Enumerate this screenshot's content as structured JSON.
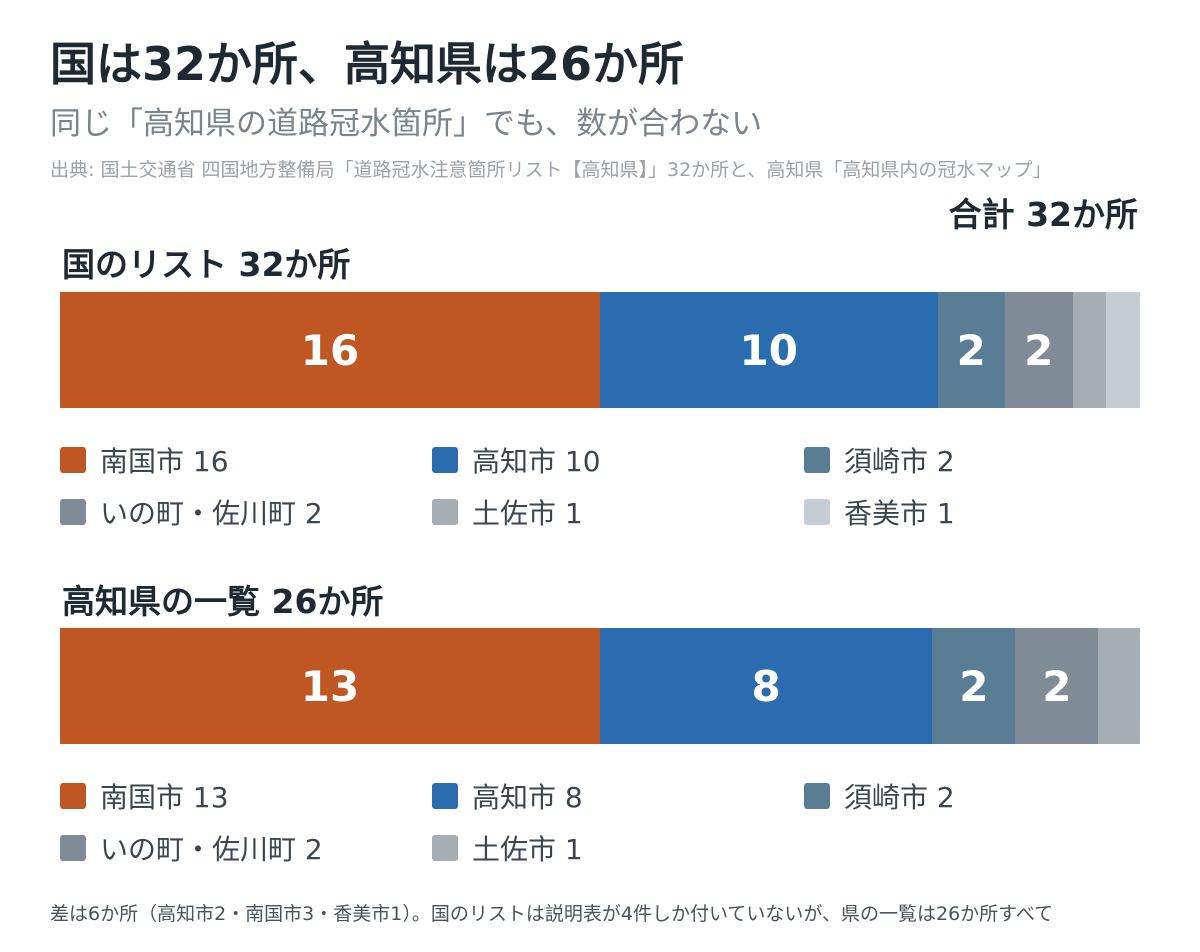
{
  "header": {
    "title": "国は32か所、高知県は26か所",
    "subtitle": "同じ「高知県の道路冠水箇所」でも、数が合わない",
    "source": "出典: 国土交通省 四国地方整備局「道路冠水注意箇所リスト【高知県】」32か所と、高知県「高知県内の冠水マップ」",
    "total": "合計 32か所"
  },
  "footer": {
    "note": "差は6か所（高知市2・南国市3・香美市1）。国のリストは説明表が4件しか付いていないが、県の一覧は26か所すべて"
  },
  "colors": {
    "南国市": "#c05621",
    "高知市": "#2b6cb0",
    "須崎市": "#5a7d96",
    "いの町・佐川町": "#7f8b97",
    "土佐市": "#a6adb5",
    "香美市": "#c5ccd4"
  },
  "chart_data": [
    {
      "type": "bar",
      "orientation": "horizontal-stacked",
      "title": "国のリスト 32か所",
      "total": 32,
      "series": [
        {
          "name": "南国市",
          "value": 16,
          "label": "16",
          "legend": "南国市 16"
        },
        {
          "name": "高知市",
          "value": 10,
          "label": "10",
          "legend": "高知市 10"
        },
        {
          "name": "須崎市",
          "value": 2,
          "label": "2",
          "legend": "須崎市 2"
        },
        {
          "name": "いの町・佐川町",
          "value": 2,
          "label": "2",
          "legend": "いの町・佐川町 2"
        },
        {
          "name": "土佐市",
          "value": 1,
          "label": "",
          "legend": "土佐市 1"
        },
        {
          "name": "香美市",
          "value": 1,
          "label": "",
          "legend": "香美市 1"
        }
      ]
    },
    {
      "type": "bar",
      "orientation": "horizontal-stacked",
      "title": "高知県の一覧 26か所",
      "total": 26,
      "series": [
        {
          "name": "南国市",
          "value": 13,
          "label": "13",
          "legend": "南国市 13"
        },
        {
          "name": "高知市",
          "value": 8,
          "label": "8",
          "legend": "高知市 8"
        },
        {
          "name": "須崎市",
          "value": 2,
          "label": "2",
          "legend": "須崎市 2"
        },
        {
          "name": "いの町・佐川町",
          "value": 2,
          "label": "2",
          "legend": "いの町・佐川町 2"
        },
        {
          "name": "土佐市",
          "value": 1,
          "label": "",
          "legend": "土佐市 1"
        }
      ]
    }
  ]
}
